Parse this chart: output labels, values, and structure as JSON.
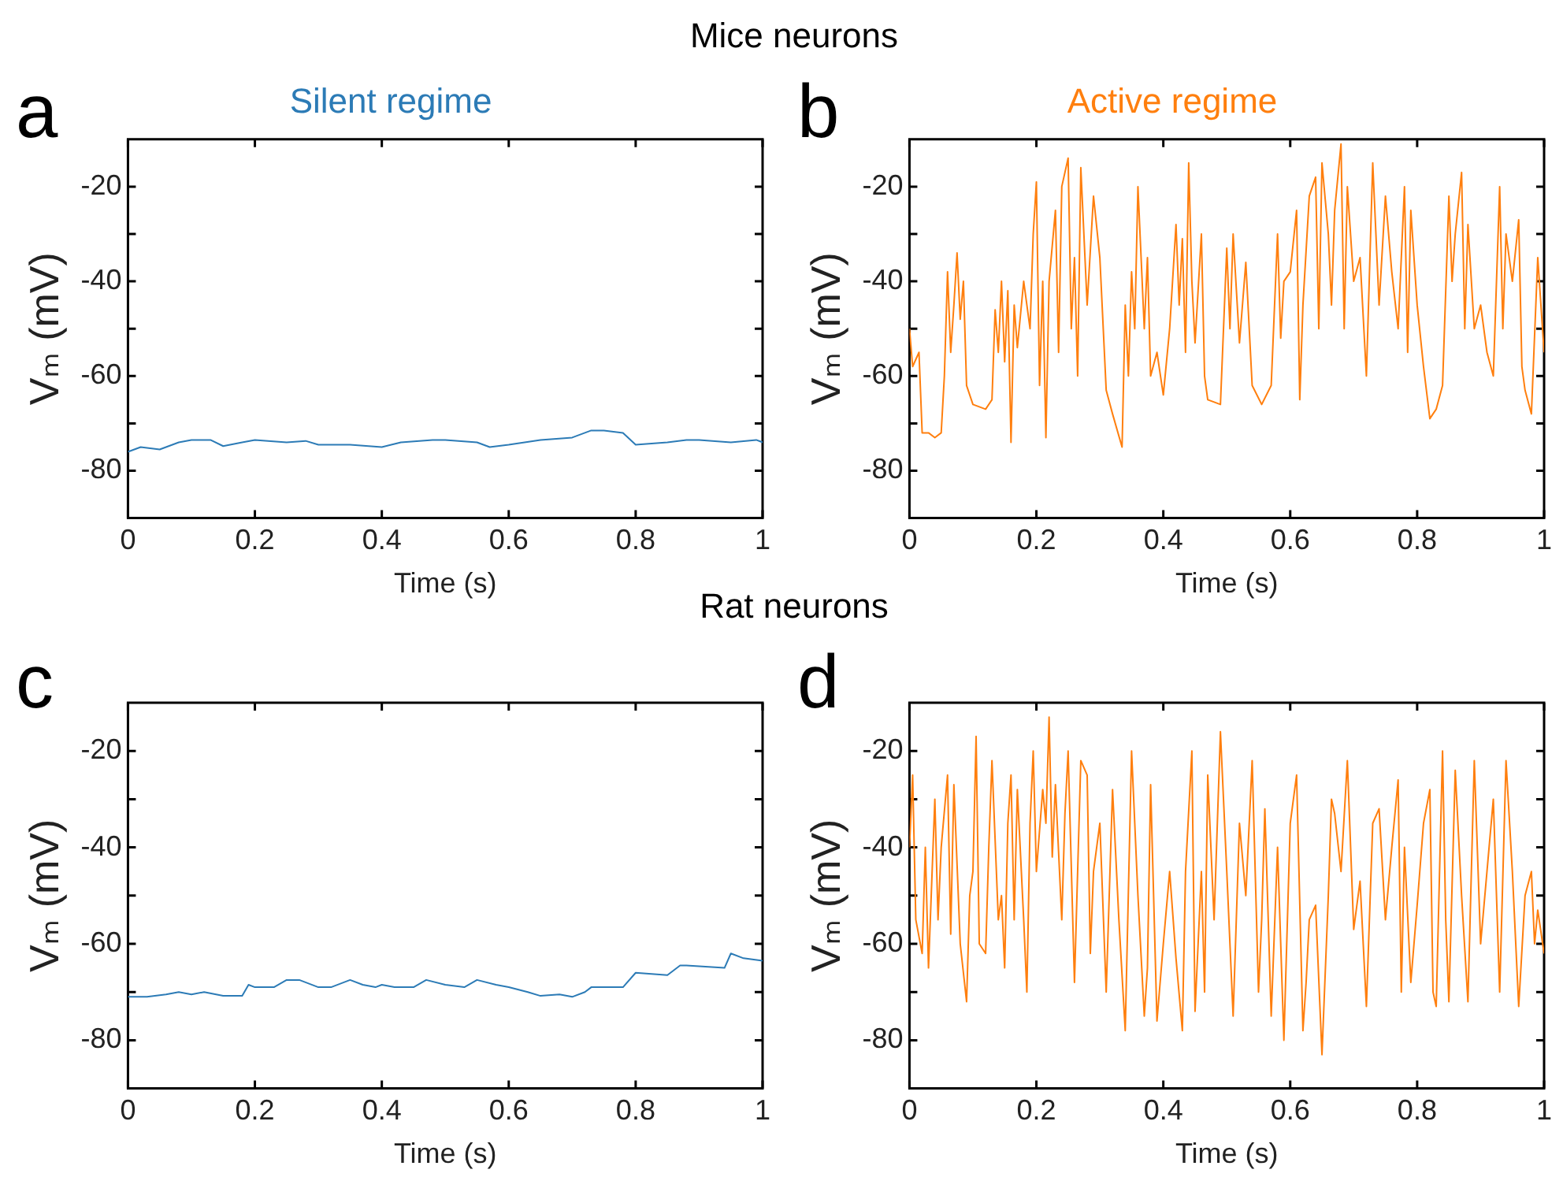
{
  "chart_data": [
    {
      "type": "line",
      "title": "Silent regime",
      "xlabel": "Time (s)",
      "ylabel": "Vₘ (mV)",
      "annotations": [
        "a",
        "Mice neurons"
      ],
      "xlim": [
        0,
        1
      ],
      "xticks": [
        0,
        0.2,
        0.4,
        0.6,
        0.8,
        1
      ],
      "ylim": [
        -90,
        -10
      ],
      "yticks": [
        -80,
        {
          "value": -70,
          "label": null
        },
        -60,
        {
          "value": -50,
          "label": null
        },
        -40,
        {
          "value": -30,
          "label": null
        },
        -20
      ],
      "grid": false,
      "legend": false,
      "marker": "none",
      "series": [
        {
          "color": "#2c7bb6",
          "x": [
            0,
            0.02,
            0.05,
            0.08,
            0.1,
            0.13,
            0.15,
            0.18,
            0.2,
            0.25,
            0.28,
            0.3,
            0.35,
            0.4,
            0.43,
            0.48,
            0.5,
            0.55,
            0.57,
            0.6,
            0.65,
            0.7,
            0.73,
            0.75,
            0.78,
            0.8,
            0.85,
            0.88,
            0.9,
            0.95,
            0.99,
            1
          ],
          "values": [
            -76,
            -75,
            -75.5,
            -74,
            -73.5,
            -73.5,
            -74.8,
            -74,
            -73.5,
            -74,
            -73.7,
            -74.5,
            -74.5,
            -75,
            -74,
            -73.5,
            -73.5,
            -74,
            -75,
            -74.5,
            -73.5,
            -73,
            -71.5,
            -71.5,
            -72,
            -74.5,
            -74,
            -73.5,
            -73.5,
            -74,
            -73.5,
            -74
          ]
        }
      ]
    },
    {
      "type": "line",
      "title": "Active regime",
      "xlabel": "Time (s)",
      "ylabel": "Vₘ (mV)",
      "annotations": [
        "b"
      ],
      "xlim": [
        0,
        1
      ],
      "xticks": [
        0,
        0.2,
        0.4,
        0.6,
        0.8,
        1
      ],
      "ylim": [
        -90,
        -10
      ],
      "yticks": [
        -80,
        {
          "value": -70,
          "label": null
        },
        -60,
        {
          "value": -50,
          "label": null
        },
        -40,
        {
          "value": -30,
          "label": null
        },
        -20
      ],
      "grid": false,
      "legend": false,
      "marker": "none",
      "series": [
        {
          "color": "#ff7f0e",
          "x": [
            0,
            0.005,
            0.015,
            0.02,
            0.03,
            0.04,
            0.05,
            0.055,
            0.06,
            0.065,
            0.07,
            0.075,
            0.08,
            0.085,
            0.09,
            0.1,
            0.12,
            0.13,
            0.135,
            0.14,
            0.145,
            0.15,
            0.155,
            0.16,
            0.165,
            0.17,
            0.18,
            0.19,
            0.195,
            0.2,
            0.205,
            0.21,
            0.215,
            0.22,
            0.23,
            0.235,
            0.24,
            0.25,
            0.255,
            0.26,
            0.265,
            0.27,
            0.28,
            0.29,
            0.3,
            0.31,
            0.32,
            0.335,
            0.34,
            0.345,
            0.35,
            0.355,
            0.36,
            0.37,
            0.375,
            0.38,
            0.39,
            0.4,
            0.41,
            0.42,
            0.425,
            0.43,
            0.435,
            0.44,
            0.445,
            0.45,
            0.46,
            0.465,
            0.47,
            0.49,
            0.5,
            0.505,
            0.51,
            0.52,
            0.53,
            0.54,
            0.555,
            0.57,
            0.58,
            0.585,
            0.59,
            0.6,
            0.61,
            0.615,
            0.62,
            0.63,
            0.64,
            0.645,
            0.65,
            0.66,
            0.665,
            0.67,
            0.68,
            0.685,
            0.69,
            0.7,
            0.71,
            0.72,
            0.73,
            0.74,
            0.75,
            0.76,
            0.77,
            0.78,
            0.785,
            0.79,
            0.8,
            0.81,
            0.82,
            0.83,
            0.84,
            0.85,
            0.855,
            0.86,
            0.87,
            0.875,
            0.88,
            0.89,
            0.9,
            0.91,
            0.92,
            0.93,
            0.935,
            0.94,
            0.95,
            0.96,
            0.965,
            0.97,
            0.98,
            0.99,
            1
          ],
          "values": [
            -50,
            -58,
            -55,
            -72,
            -72,
            -73,
            -72,
            -60,
            -38,
            -55,
            -45,
            -34,
            -48,
            -40,
            -62,
            -66,
            -67,
            -65,
            -46,
            -55,
            -40,
            -57,
            -42,
            -74,
            -45,
            -54,
            -40,
            -50,
            -30,
            -19,
            -62,
            -40,
            -73,
            -40,
            -25,
            -55,
            -20,
            -14,
            -50,
            -35,
            -60,
            -16,
            -45,
            -22,
            -35,
            -63,
            -68,
            -75,
            -45,
            -60,
            -38,
            -50,
            -20,
            -50,
            -35,
            -60,
            -55,
            -64,
            -50,
            -28,
            -45,
            -31,
            -55,
            -15,
            -40,
            -53,
            -30,
            -60,
            -65,
            -66,
            -33,
            -50,
            -30,
            -53,
            -36,
            -62,
            -66,
            -62,
            -30,
            -52,
            -40,
            -38,
            -25,
            -65,
            -45,
            -22,
            -18,
            -50,
            -15,
            -30,
            -45,
            -25,
            -11,
            -50,
            -20,
            -40,
            -35,
            -60,
            -15,
            -45,
            -22,
            -38,
            -50,
            -20,
            -55,
            -25,
            -45,
            -58,
            -69,
            -67,
            -62,
            -22,
            -40,
            -30,
            -17,
            -50,
            -28,
            -50,
            -45,
            -55,
            -60,
            -20,
            -50,
            -30,
            -40,
            -27,
            -58,
            -63,
            -68,
            -35,
            -55
          ]
        }
      ]
    },
    {
      "type": "line",
      "xlabel": "Time (s)",
      "ylabel": "Vₘ (mV)",
      "annotations": [
        "c",
        "Rat neurons"
      ],
      "xlim": [
        0,
        1
      ],
      "xticks": [
        0,
        0.2,
        0.4,
        0.6,
        0.8,
        1
      ],
      "ylim": [
        -90,
        -10
      ],
      "yticks": [
        -80,
        {
          "value": -70,
          "label": null
        },
        -60,
        {
          "value": -50,
          "label": null
        },
        -40,
        {
          "value": -30,
          "label": null
        },
        -20
      ],
      "grid": false,
      "legend": false,
      "marker": "none",
      "series": [
        {
          "color": "#2c7bb6",
          "x": [
            0,
            0.03,
            0.06,
            0.08,
            0.1,
            0.12,
            0.15,
            0.18,
            0.19,
            0.2,
            0.23,
            0.25,
            0.27,
            0.3,
            0.32,
            0.35,
            0.37,
            0.39,
            0.4,
            0.42,
            0.45,
            0.47,
            0.5,
            0.53,
            0.55,
            0.58,
            0.6,
            0.63,
            0.65,
            0.68,
            0.7,
            0.72,
            0.73,
            0.75,
            0.78,
            0.8,
            0.85,
            0.87,
            0.88,
            0.94,
            0.95,
            0.97,
            1
          ],
          "values": [
            -71,
            -71,
            -70.5,
            -70,
            -70.5,
            -70,
            -70.8,
            -70.8,
            -68.5,
            -69,
            -69,
            -67.5,
            -67.5,
            -69,
            -69,
            -67.5,
            -68.5,
            -69,
            -68.5,
            -69,
            -69,
            -67.5,
            -68.5,
            -69,
            -67.5,
            -68.5,
            -69,
            -70,
            -70.8,
            -70.5,
            -71,
            -70,
            -69,
            -69,
            -69,
            -66,
            -66.5,
            -64.5,
            -64.5,
            -65,
            -62,
            -63,
            -63.5
          ]
        }
      ]
    },
    {
      "type": "line",
      "xlabel": "Time (s)",
      "ylabel": "Vₘ (mV)",
      "annotations": [
        "d"
      ],
      "xlim": [
        0,
        1
      ],
      "xticks": [
        0,
        0.2,
        0.4,
        0.6,
        0.8,
        1
      ],
      "ylim": [
        -90,
        -10
      ],
      "yticks": [
        -80,
        {
          "value": -70,
          "label": null
        },
        -60,
        {
          "value": -50,
          "label": null
        },
        -40,
        {
          "value": -30,
          "label": null
        },
        -20
      ],
      "grid": false,
      "legend": false,
      "marker": "none",
      "series": [
        {
          "color": "#ff7f0e",
          "x": [
            0,
            0.005,
            0.01,
            0.02,
            0.025,
            0.03,
            0.04,
            0.045,
            0.05,
            0.06,
            0.065,
            0.07,
            0.08,
            0.09,
            0.095,
            0.1,
            0.105,
            0.11,
            0.12,
            0.125,
            0.13,
            0.14,
            0.145,
            0.15,
            0.155,
            0.16,
            0.165,
            0.17,
            0.18,
            0.185,
            0.19,
            0.195,
            0.2,
            0.21,
            0.215,
            0.22,
            0.225,
            0.23,
            0.24,
            0.245,
            0.25,
            0.26,
            0.265,
            0.27,
            0.28,
            0.285,
            0.29,
            0.3,
            0.31,
            0.32,
            0.33,
            0.34,
            0.35,
            0.36,
            0.37,
            0.375,
            0.38,
            0.39,
            0.4,
            0.41,
            0.42,
            0.43,
            0.435,
            0.445,
            0.45,
            0.46,
            0.465,
            0.47,
            0.48,
            0.49,
            0.5,
            0.51,
            0.52,
            0.53,
            0.54,
            0.55,
            0.555,
            0.56,
            0.57,
            0.58,
            0.59,
            0.6,
            0.61,
            0.62,
            0.625,
            0.63,
            0.64,
            0.65,
            0.66,
            0.665,
            0.67,
            0.68,
            0.69,
            0.7,
            0.71,
            0.72,
            0.73,
            0.74,
            0.75,
            0.76,
            0.77,
            0.775,
            0.78,
            0.79,
            0.8,
            0.81,
            0.82,
            0.825,
            0.83,
            0.84,
            0.845,
            0.85,
            0.86,
            0.87,
            0.88,
            0.89,
            0.9,
            0.91,
            0.92,
            0.93,
            0.94,
            0.95,
            0.96,
            0.97,
            0.98,
            0.985,
            0.99,
            1
          ],
          "values": [
            -40,
            -25,
            -55,
            -62,
            -40,
            -65,
            -30,
            -55,
            -40,
            -25,
            -58,
            -27,
            -60,
            -72,
            -50,
            -45,
            -17,
            -60,
            -62,
            -40,
            -22,
            -55,
            -50,
            -65,
            -35,
            -25,
            -55,
            -28,
            -55,
            -70,
            -35,
            -20,
            -45,
            -28,
            -35,
            -13,
            -42,
            -27,
            -55,
            -33,
            -20,
            -68,
            -45,
            -22,
            -25,
            -62,
            -45,
            -35,
            -70,
            -28,
            -55,
            -78,
            -20,
            -50,
            -75,
            -65,
            -27,
            -76,
            -60,
            -45,
            -63,
            -78,
            -45,
            -20,
            -74,
            -45,
            -70,
            -25,
            -55,
            -16,
            -45,
            -75,
            -35,
            -50,
            -22,
            -70,
            -55,
            -32,
            -75,
            -40,
            -80,
            -35,
            -25,
            -78,
            -68,
            -55,
            -52,
            -83,
            -50,
            -30,
            -33,
            -45,
            -22,
            -57,
            -47,
            -73,
            -35,
            -32,
            -55,
            -40,
            -26,
            -70,
            -40,
            -68,
            -52,
            -35,
            -28,
            -70,
            -73,
            -20,
            -55,
            -72,
            -24,
            -50,
            -72,
            -22,
            -60,
            -45,
            -30,
            -70,
            -22,
            -45,
            -73,
            -50,
            -45,
            -60,
            -53,
            -62
          ]
        }
      ]
    }
  ]
}
